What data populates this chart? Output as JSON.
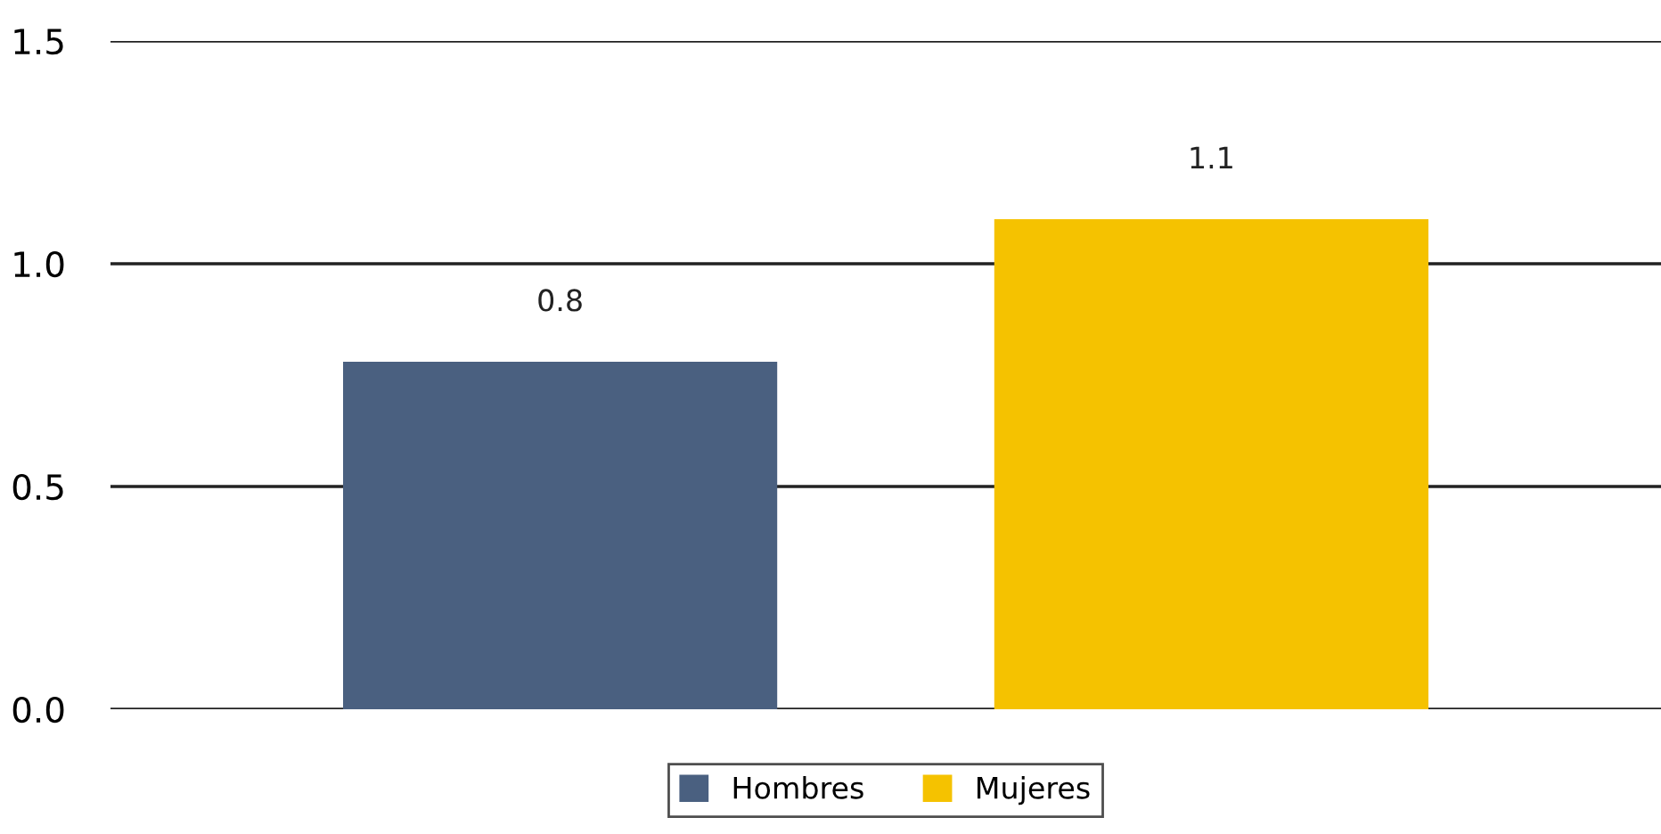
{
  "chart_data": {
    "type": "bar",
    "categories": [
      null
    ],
    "series": [
      {
        "name": "Hombres",
        "color": "#4a6080",
        "values": [
          0.78
        ],
        "value_labels": [
          "0.8"
        ]
      },
      {
        "name": "Mujeres",
        "color": "#f5c200",
        "values": [
          1.1
        ],
        "value_labels": [
          "1.1"
        ]
      }
    ],
    "ylim": [
      0,
      1.5
    ],
    "yticks": [
      {
        "value": 0,
        "label": "0.0"
      },
      0.5,
      {
        "value": 1,
        "label": "1.0"
      },
      1.5
    ],
    "grid": "y",
    "legend": "bottom"
  }
}
